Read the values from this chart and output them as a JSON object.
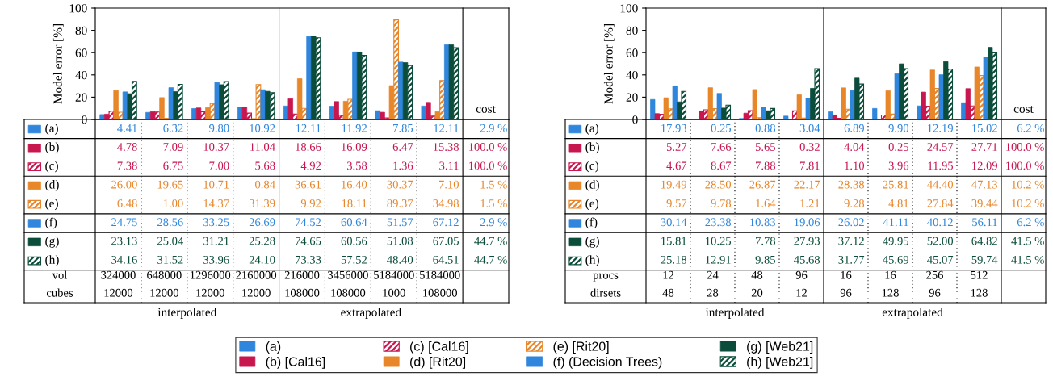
{
  "chart_data": [
    {
      "type": "bar",
      "ylabel": "Model error [%]",
      "ylim": [
        0,
        100
      ],
      "yticks": [
        0,
        20,
        40,
        60,
        80,
        100
      ],
      "legend": "bottom",
      "data_labels": true,
      "tick_labels": "y",
      "categories": [
        "324000\n12000",
        "648000\n12000",
        "1296000\n12000",
        "2160000\n12000",
        "216000\n108000",
        "3456000\n108000",
        "5184000\n1000",
        "5184000\n108000"
      ],
      "annotations": [
        "cost",
        "2.9 %",
        "100.0 %",
        "100.0 %",
        "1.5 %",
        "1.5 %",
        "2.9 %",
        "44.7 %",
        "44.7 %",
        "(a)",
        "(b)",
        "(c)",
        "(d)",
        "(e)",
        "(f)",
        "(g)",
        "(h)",
        "vol",
        "cubes",
        "interpolated",
        "extrapolated"
      ],
      "series": [
        {
          "name": "(a)",
          "color": "#2f86dc",
          "values": [
            4.41,
            6.32,
            9.8,
            10.92,
            12.11,
            11.92,
            7.85,
            12.11
          ],
          "value_labels": [
            "4.41",
            "6.32",
            "9.80",
            "10.92",
            "12.11",
            "11.92",
            "7.85",
            "12.11"
          ]
        },
        {
          "name": "(b) [Cal16]",
          "color": "#c8174f",
          "values": [
            4.78,
            7.09,
            10.37,
            11.04,
            18.66,
            16.09,
            6.47,
            15.38
          ],
          "value_labels": [
            "4.78",
            "7.09",
            "10.37",
            "11.04",
            "18.66",
            "16.09",
            "6.47",
            "15.38"
          ]
        },
        {
          "name": "(c) [Cal16]",
          "color": "#c8174f",
          "values": [
            7.38,
            6.75,
            7.0,
            5.68,
            4.92,
            3.58,
            1.36,
            3.11
          ],
          "value_labels": [
            "7.38",
            "6.75",
            "7.00",
            "5.68",
            "4.92",
            "3.58",
            "1.36",
            "3.11"
          ]
        },
        {
          "name": "(d) [Rit20]",
          "color": "#e8862a",
          "values": [
            26.0,
            19.65,
            10.71,
            0.84,
            36.61,
            16.4,
            30.37,
            7.1
          ],
          "value_labels": [
            "26.00",
            "19.65",
            "10.71",
            "0.84",
            "36.61",
            "16.40",
            "30.37",
            "7.10"
          ]
        },
        {
          "name": "(e) [Rit20]",
          "color": "#e8862a",
          "values": [
            6.48,
            1.0,
            14.37,
            31.39,
            9.92,
            18.11,
            89.37,
            34.98
          ],
          "value_labels": [
            "6.48",
            "1.00",
            "14.37",
            "31.39",
            "9.92",
            "18.11",
            "89.37",
            "34.98"
          ]
        },
        {
          "name": "(f) (Decision Trees)",
          "color": "#2f86dc",
          "values": [
            24.75,
            28.56,
            33.25,
            26.69,
            74.52,
            60.64,
            51.57,
            67.12
          ],
          "value_labels": [
            "24.75",
            "28.56",
            "33.25",
            "26.69",
            "74.52",
            "60.64",
            "51.57",
            "67.12"
          ]
        },
        {
          "name": "(g) [Web21]",
          "color": "#0b4d3a",
          "values": [
            23.13,
            25.04,
            31.21,
            25.28,
            74.65,
            60.56,
            51.08,
            67.05
          ],
          "value_labels": [
            "23.13",
            "25.04",
            "31.21",
            "25.28",
            "74.65",
            "60.56",
            "51.08",
            "67.05"
          ]
        },
        {
          "name": "(h) [Web21]",
          "color": "#0b4d3a",
          "values": [
            34.16,
            31.52,
            33.96,
            24.1,
            73.33,
            57.52,
            48.4,
            64.51
          ],
          "value_labels": [
            "34.16",
            "31.52",
            "33.96",
            "24.10",
            "73.33",
            "57.52",
            "48.40",
            "64.51"
          ]
        }
      ]
    },
    {
      "type": "bar",
      "ylabel": "Model error [%]",
      "ylim": [
        0,
        100
      ],
      "yticks": [
        0,
        20,
        40,
        60,
        80,
        100
      ],
      "data_labels": true,
      "tick_labels": "y",
      "categories": [
        "12\n48",
        "24\n28",
        "48\n20",
        "96\n12",
        "16\n96",
        "16\n128",
        "256\n96",
        "512\n128"
      ],
      "annotations": [
        "cost",
        "6.2 %",
        "100.0 %",
        "100.0 %",
        "10.2 %",
        "10.2 %",
        "6.2 %",
        "41.5 %",
        "41.5 %",
        "(a)",
        "(b)",
        "(c)",
        "(d)",
        "(e)",
        "(f)",
        "(g)",
        "(h)",
        "procs",
        "dirsets",
        "interpolated",
        "extrapolated"
      ],
      "series": [
        {
          "color": "#2f86dc",
          "values": [
            17.93,
            0.25,
            0.88,
            3.04,
            6.89,
            9.9,
            12.19,
            15.02
          ],
          "value_labels": [
            "17.93",
            "0.25",
            "0.88",
            "3.04",
            "6.89",
            "9.90",
            "12.19",
            "15.02"
          ]
        },
        {
          "color": "#c8174f",
          "values": [
            5.27,
            7.66,
            5.65,
            0.32,
            4.04,
            0.25,
            24.57,
            27.71
          ],
          "value_labels": [
            "5.27",
            "7.66",
            "5.65",
            "0.32",
            "4.04",
            "0.25",
            "24.57",
            "27.71"
          ]
        },
        {
          "color": "#c8174f",
          "values": [
            4.67,
            8.67,
            7.88,
            7.81,
            1.1,
            3.96,
            11.95,
            12.09
          ],
          "value_labels": [
            "4.67",
            "8.67",
            "7.88",
            "7.81",
            "1.10",
            "3.96",
            "11.95",
            "12.09"
          ]
        },
        {
          "color": "#e8862a",
          "values": [
            19.49,
            28.5,
            26.87,
            22.17,
            28.38,
            25.81,
            44.4,
            47.13
          ],
          "value_labels": [
            "19.49",
            "28.50",
            "26.87",
            "22.17",
            "28.38",
            "25.81",
            "44.40",
            "47.13"
          ]
        },
        {
          "color": "#e8862a",
          "values": [
            9.57,
            9.78,
            1.64,
            1.21,
            9.28,
            4.81,
            27.84,
            39.44
          ],
          "value_labels": [
            "9.57",
            "9.78",
            "1.64",
            "1.21",
            "9.28",
            "4.81",
            "27.84",
            "39.44"
          ]
        },
        {
          "color": "#2f86dc",
          "values": [
            30.14,
            23.38,
            10.83,
            19.06,
            26.02,
            41.11,
            40.12,
            56.11
          ],
          "value_labels": [
            "30.14",
            "23.38",
            "10.83",
            "19.06",
            "26.02",
            "41.11",
            "40.12",
            "56.11"
          ]
        },
        {
          "color": "#0b4d3a",
          "values": [
            15.81,
            10.25,
            7.78,
            27.93,
            37.12,
            49.95,
            52.0,
            64.82
          ],
          "value_labels": [
            "15.81",
            "10.25",
            "7.78",
            "27.93",
            "37.12",
            "49.95",
            "52.00",
            "64.82"
          ]
        },
        {
          "color": "#0b4d3a",
          "values": [
            25.18,
            12.91,
            9.85,
            45.68,
            31.77,
            45.69,
            45.07,
            59.74
          ],
          "value_labels": [
            "25.18",
            "12.91",
            "9.85",
            "45.68",
            "31.77",
            "45.69",
            "45.07",
            "59.74"
          ]
        }
      ]
    }
  ]
}
